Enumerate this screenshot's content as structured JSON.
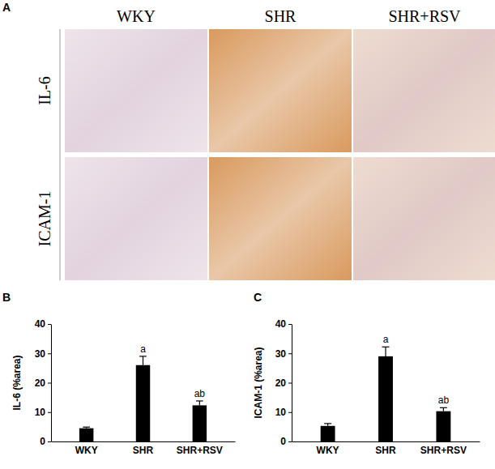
{
  "panel_a": {
    "label": "A",
    "columns": [
      "WKY",
      "SHR",
      "SHR+RSV"
    ],
    "rows": [
      "IL-6",
      "ICAM-1"
    ]
  },
  "chart_data": [
    {
      "type": "bar",
      "title": "B",
      "y_label": "IL-6 (%area)",
      "categories": [
        "WKY",
        "SHR",
        "SHR+RSV"
      ],
      "values": [
        4.5,
        26,
        12.3
      ],
      "errors": [
        0.4,
        3,
        1.5
      ],
      "annotations": [
        null,
        "a",
        "ab"
      ],
      "color": "#000000",
      "ylim": [
        0,
        40
      ],
      "yticks": [
        0,
        10,
        20,
        30,
        40
      ],
      "grid": false
    },
    {
      "type": "bar",
      "title": "C",
      "y_label": "ICAM-1 (%area)",
      "categories": [
        "WKY",
        "SHR",
        "SHR+RSV"
      ],
      "values": [
        5.3,
        29,
        10.3
      ],
      "errors": [
        0.8,
        3.2,
        1.2
      ],
      "annotations": [
        null,
        "a",
        "ab"
      ],
      "color": "#000000",
      "ylim": [
        0,
        40
      ],
      "yticks": [
        0,
        10,
        20,
        30,
        40
      ],
      "grid": false
    }
  ]
}
